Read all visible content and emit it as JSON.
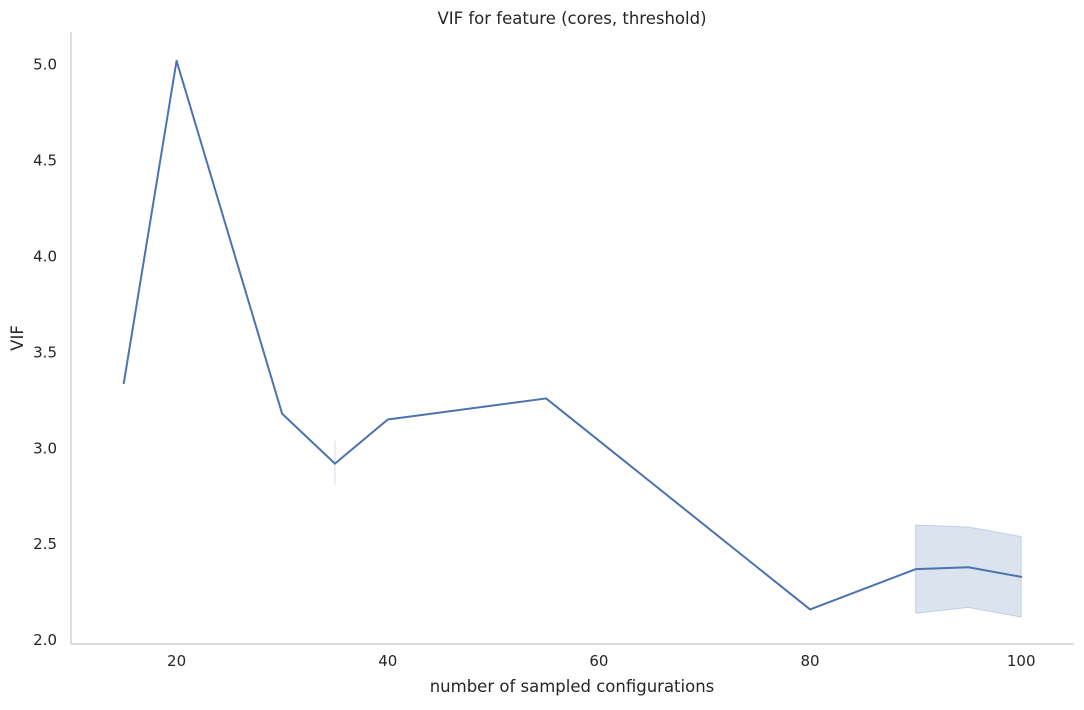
{
  "chart_data": {
    "type": "line",
    "title": "VIF for feature (cores, threshold)",
    "xlabel": "number of sampled configurations",
    "ylabel": "VIF",
    "xlim": [
      10,
      105
    ],
    "ylim": [
      1.98,
      5.17
    ],
    "x_ticks": [
      20,
      40,
      60,
      80,
      100
    ],
    "y_ticks": [
      2.0,
      2.5,
      3.0,
      3.5,
      4.0,
      4.5,
      5.0
    ],
    "grid": false,
    "legend": "none",
    "series": [
      {
        "color": "#4c72b0",
        "band_color": "#4c72b0",
        "x": [
          15,
          20,
          30,
          35,
          40,
          55,
          80,
          90,
          95,
          100
        ],
        "y": [
          3.34,
          5.02,
          3.18,
          2.92,
          3.15,
          3.26,
          2.16,
          2.37,
          2.38,
          2.33
        ],
        "ci_lower": [
          3.34,
          5.02,
          3.18,
          2.81,
          3.15,
          3.26,
          2.16,
          2.14,
          2.17,
          2.12
        ],
        "ci_upper": [
          3.34,
          5.02,
          3.18,
          3.04,
          3.15,
          3.26,
          2.16,
          2.6,
          2.59,
          2.54
        ]
      }
    ]
  }
}
